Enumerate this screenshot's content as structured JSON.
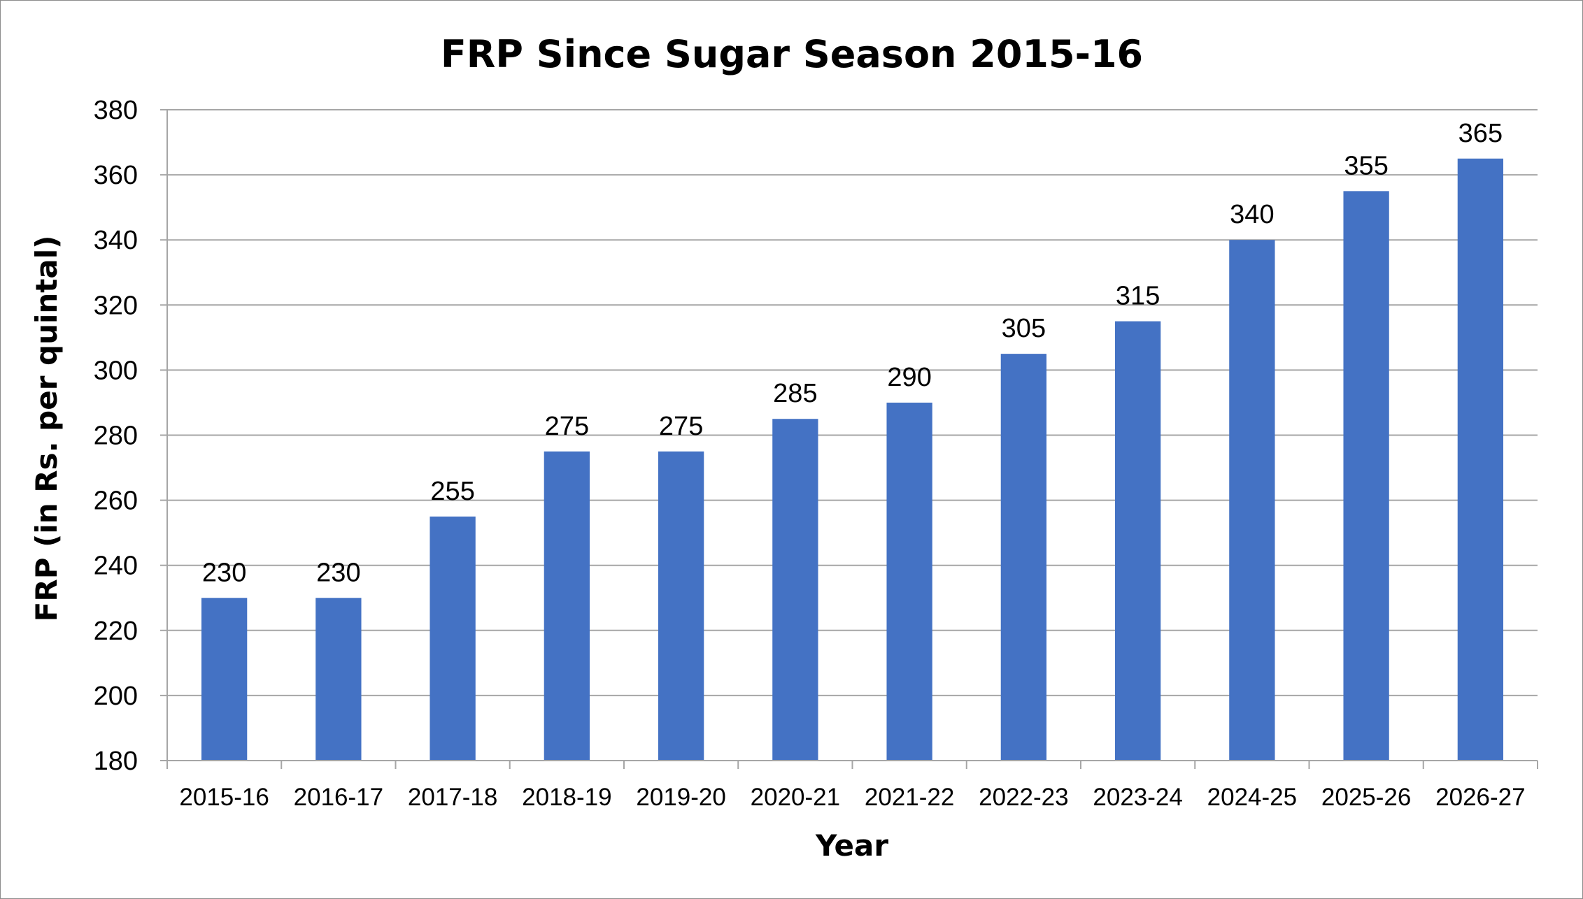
{
  "chart_data": {
    "type": "bar",
    "title": "FRP Since Sugar Season 2015-16",
    "xlabel": "Year",
    "ylabel": "FRP (in Rs. per quintal)",
    "categories": [
      "2015-16",
      "2016-17",
      "2017-18",
      "2018-19",
      "2019-20",
      "2020-21",
      "2021-22",
      "2022-23",
      "2023-24",
      "2024-25",
      "2025-26",
      "2026-27"
    ],
    "values": [
      230,
      230,
      255,
      275,
      275,
      285,
      290,
      305,
      315,
      340,
      355,
      365
    ],
    "data_labels": [
      "230",
      "230",
      "255",
      "275",
      "275",
      "285",
      "290",
      "305",
      "315",
      "340",
      "355",
      "365"
    ],
    "ylim": [
      180,
      380
    ],
    "yticks": [
      180,
      200,
      220,
      240,
      260,
      280,
      300,
      320,
      340,
      360,
      380
    ],
    "ytick_labels": [
      "180",
      "200",
      "220",
      "240",
      "260",
      "280",
      "300",
      "320",
      "340",
      "360",
      "380"
    ],
    "grid": true,
    "legend": "none",
    "bar_color": "#4472C4"
  }
}
